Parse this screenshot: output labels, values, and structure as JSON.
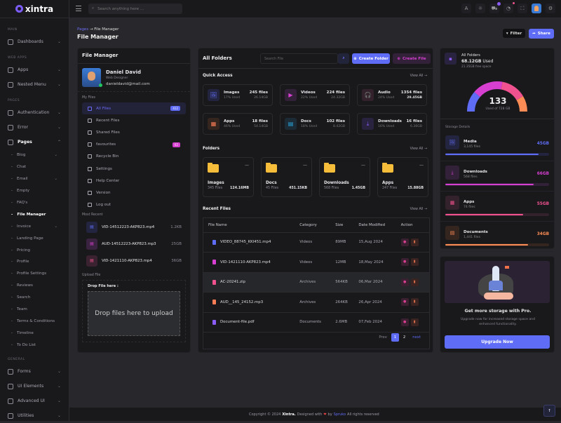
{
  "brand": {
    "name": "xintra",
    "accent": "#5f6cf5"
  },
  "header": {
    "search_placeholder": "Search anything here ...",
    "cart_count": "5",
    "icons": [
      "translate-icon",
      "theme-toggle-icon",
      "cart-icon",
      "notification-icon",
      "fullscreen-icon",
      "avatar",
      "settings-icon"
    ]
  },
  "sidebar": {
    "items": [
      {
        "type": "sec",
        "label": "MAIN"
      },
      {
        "type": "main",
        "label": "Dashboards",
        "chev": "⌄"
      },
      {
        "type": "sec",
        "label": "WEB APPS"
      },
      {
        "type": "main",
        "label": "Apps",
        "chev": "⌄"
      },
      {
        "type": "main",
        "label": "Nested Menu",
        "chev": "⌄"
      },
      {
        "type": "sec",
        "label": "PAGES"
      },
      {
        "type": "main",
        "label": "Authentication",
        "chev": "⌄"
      },
      {
        "type": "main",
        "label": "Error",
        "chev": "⌄"
      },
      {
        "type": "main",
        "label": "Pages",
        "chev": "⌃",
        "open": true
      },
      {
        "type": "sub",
        "label": "Blog",
        "chev": "⌄"
      },
      {
        "type": "sub",
        "label": "Chat"
      },
      {
        "type": "sub",
        "label": "Email",
        "chev": "⌄"
      },
      {
        "type": "sub",
        "label": "Empty"
      },
      {
        "type": "sub",
        "label": "FAQ's"
      },
      {
        "type": "sub",
        "label": "File Manager",
        "active": true
      },
      {
        "type": "sub",
        "label": "Invoice",
        "chev": "⌄"
      },
      {
        "type": "sub",
        "label": "Landing Page"
      },
      {
        "type": "sub",
        "label": "Pricing"
      },
      {
        "type": "sub",
        "label": "Profile"
      },
      {
        "type": "sub",
        "label": "Profile Settings"
      },
      {
        "type": "sub",
        "label": "Reviews"
      },
      {
        "type": "sub",
        "label": "Search"
      },
      {
        "type": "sub",
        "label": "Team"
      },
      {
        "type": "sub",
        "label": "Terms & Conditions"
      },
      {
        "type": "sub",
        "label": "Timeline"
      },
      {
        "type": "sub",
        "label": "To Do List"
      },
      {
        "type": "sec",
        "label": "GENERAL"
      },
      {
        "type": "main",
        "label": "Forms",
        "chev": "⌄"
      },
      {
        "type": "main",
        "label": "UI Elements",
        "chev": "⌄"
      },
      {
        "type": "main",
        "label": "Advanced UI",
        "chev": "⌄"
      },
      {
        "type": "main",
        "label": "Utilities",
        "chev": "⌄"
      }
    ]
  },
  "breadcrumb": {
    "parent": "Pages",
    "sep": "→",
    "current": "File Manager"
  },
  "page_title": "File Manager",
  "actions": {
    "filter": "Filter",
    "share": "Share"
  },
  "file_manager": {
    "title": "File Manager",
    "user": {
      "name": "Daniel David",
      "role": "Web Designer",
      "email": "danieldavid@mail.com"
    },
    "my_files_label": "My Files",
    "menu": [
      {
        "label": "All Files",
        "badge": "412",
        "badge_color": "#5f6cf5",
        "active": true
      },
      {
        "label": "Recent Files"
      },
      {
        "label": "Shared Files"
      },
      {
        "label": "favourites",
        "badge": "02",
        "badge_color": "#d63fd0"
      },
      {
        "label": "Recycle Bin"
      },
      {
        "label": "Settings"
      },
      {
        "label": "Help Center"
      },
      {
        "label": "Version"
      },
      {
        "label": "Log out"
      }
    ],
    "most_recent_label": "Most Recent",
    "recent": [
      {
        "name": "VID-14512223-AKP823.mp4",
        "size": "1.2KB",
        "color": "#5f6cf5",
        "bg": "#23243f"
      },
      {
        "name": "AUD-14512223-AKP823.mp3",
        "size": "25GB",
        "color": "#d63fd0",
        "bg": "#3a2340"
      },
      {
        "name": "VID-1421110-AKP823.mp4",
        "size": "36GB",
        "color": "#f0528f",
        "bg": "#3a2230"
      }
    ],
    "upload_label": "Upload File",
    "drop_label": "Drop File here :",
    "drop_text": "Drop files here to upload"
  },
  "folders_panel": {
    "title": "All Folders",
    "search_placeholder": "Search File",
    "create_folder": "Create Folder",
    "create_file": "Create File",
    "quick_access_label": "Quick Access",
    "view_all": "View All →",
    "quick_access": [
      {
        "name": "Images",
        "used": "17% Used",
        "files": "245 files",
        "size": "26.14GB",
        "color": "#5f6cf5",
        "bg": "#23243f",
        "icon": "🖼"
      },
      {
        "name": "Videos",
        "used": "22% Used",
        "files": "224 files",
        "size": "24.32GB",
        "color": "#d63fd0",
        "bg": "#33213a",
        "icon": "▶"
      },
      {
        "name": "Audio",
        "used": "24% Used",
        "files": "1354 files",
        "size": "29.45GB",
        "color": "#f0528f",
        "bg": "#33212b",
        "icon": "🎧"
      },
      {
        "name": "Apps",
        "used": "46% Used",
        "files": "18 files",
        "size": "54.14GB",
        "color": "#fb7c55",
        "bg": "#35251f",
        "icon": "▦"
      },
      {
        "name": "Docs",
        "used": "18% Used",
        "files": "102 files",
        "size": "8.42GB",
        "color": "#29a8e0",
        "bg": "#1c2b35",
        "icon": "▤"
      },
      {
        "name": "Downloads",
        "used": "16% Used",
        "files": "16 files",
        "size": "6.36GB",
        "color": "#8b5cf6",
        "bg": "#2a2340",
        "icon": "⤓"
      }
    ],
    "folders_label": "Folders",
    "folders": [
      {
        "name": "Images",
        "files": "345 Files",
        "size": "124.16MB"
      },
      {
        "name": "Docs",
        "files": "45 Files",
        "size": "451.15KB"
      },
      {
        "name": "Downloads",
        "files": "568 Files",
        "size": "1.45GB"
      },
      {
        "name": "Apps",
        "files": "247 Files",
        "size": "15.88GB"
      }
    ],
    "recent_label": "Recent Files",
    "columns": [
      "File Name",
      "Category",
      "Size",
      "Date Modified",
      "Action"
    ],
    "rows": [
      {
        "name": "VIDEO_88745_KKI451.mp4",
        "category": "Videos",
        "size": "89MB",
        "date": "15,Aug 2024",
        "color": "#5f6cf5"
      },
      {
        "name": "VID-1421110-AKP823.mp4",
        "category": "Videos",
        "size": "12MB",
        "date": "18,May 2024",
        "color": "#d63fd0"
      },
      {
        "name": "AC-20241.zip",
        "category": "Archives",
        "size": "564KB",
        "date": "06,Mar 2024",
        "color": "#f0528f",
        "highlight": true
      },
      {
        "name": "AUD__145_24152.mp3",
        "category": "Archives",
        "size": "264KB",
        "date": "26,Apr 2024",
        "color": "#fb7c55"
      },
      {
        "name": "Document-file.pdf",
        "category": "Documents",
        "size": "2.6MB",
        "date": "07,Feb 2024",
        "color": "#8b5cf6"
      }
    ],
    "pagination": {
      "prev": "Prev",
      "pages": [
        "1",
        "2"
      ],
      "current": "1",
      "next": "next"
    }
  },
  "storage": {
    "title": "All Folders",
    "used": "68.12GB",
    "used_suffix": "Used",
    "free": "21.35GB free space",
    "gauge_value": "133",
    "gauge_label": "Used of 728 GB",
    "details_label": "Storage Details",
    "items": [
      {
        "name": "Media",
        "count": "3,145 files",
        "value": "45GB",
        "gb": 45,
        "percent": 90,
        "color": "#5f6cf5",
        "bg": "#23243f",
        "icon": "🖼"
      },
      {
        "name": "Downloads",
        "count": "568 files",
        "value": "66GB",
        "gb": 66,
        "percent": 85,
        "color": "#d63fd0",
        "bg": "#33213a",
        "icon": "⤓"
      },
      {
        "name": "Apps",
        "count": "74 files",
        "value": "55GB",
        "gb": 55,
        "percent": 75,
        "color": "#f0528f",
        "bg": "#33212b",
        "icon": "▦"
      },
      {
        "name": "Documents",
        "count": "1,441 files",
        "value": "34GB",
        "gb": 34,
        "percent": 80,
        "color": "#fb8c55",
        "bg": "#35251f",
        "icon": "▤"
      }
    ]
  },
  "promo": {
    "title": "Get more storage with Pro.",
    "text": "Upgrade now for increased storage space and enhanced functionality.",
    "button": "Upgrade Now"
  },
  "footer": {
    "prefix": "Copyright © 2024",
    "brand": "Xintra.",
    "mid": "Designed with",
    "heart": "❤",
    "by": "by",
    "author": "Spruko",
    "suffix": "All rights reserved"
  }
}
